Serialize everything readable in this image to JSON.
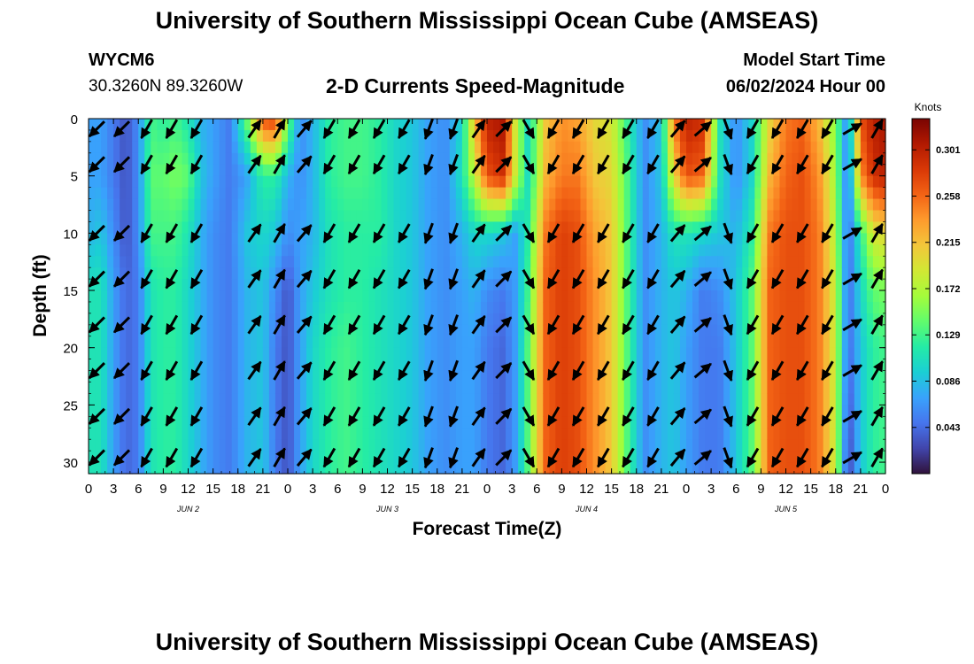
{
  "header": {
    "title": "University of Southern Mississippi Ocean Cube (AMSEAS)",
    "station_id": "WYCM6",
    "station_coords": "30.3260N  89.3260W",
    "subtitle": "2-D Currents Speed-Magnitude",
    "model_start_label": "Model Start Time",
    "model_start_value": "06/02/2024 Hour 00"
  },
  "footer": {
    "title": "University of Southern Mississippi Ocean Cube (AMSEAS)"
  },
  "colors": {
    "colormap": [
      "#30123b",
      "#4145ab",
      "#4675ed",
      "#39a2fc",
      "#1bcfd4",
      "#24eca6",
      "#61fc6c",
      "#a4fc3b",
      "#d1e834",
      "#f3c63a",
      "#fe9b2d",
      "#f36315",
      "#d93806",
      "#b11901",
      "#7a0402"
    ]
  },
  "chart_data": {
    "type": "heatmap",
    "title": "2-D Currents Speed-Magnitude",
    "xlabel": "Forecast Time(Z)",
    "ylabel": "Depth (ft)",
    "xlim": [
      0,
      96
    ],
    "ylim": [
      31,
      0
    ],
    "x_ticks": [
      0,
      3,
      6,
      9,
      12,
      15,
      18,
      21,
      24,
      27,
      30,
      33,
      36,
      39,
      42,
      45,
      48,
      51,
      54,
      57,
      60,
      63,
      66,
      69,
      72,
      75,
      78,
      81,
      84,
      87,
      90,
      93,
      96
    ],
    "x_tick_labels": [
      "0",
      "3",
      "6",
      "9",
      "12",
      "15",
      "18",
      "21",
      "0",
      "3",
      "6",
      "9",
      "12",
      "15",
      "18",
      "21",
      "0",
      "3",
      "6",
      "9",
      "12",
      "15",
      "18",
      "21",
      "0",
      "3",
      "6",
      "9",
      "12",
      "15",
      "18",
      "21",
      "0"
    ],
    "day_labels": [
      {
        "hour": 12,
        "text": "JUN 2"
      },
      {
        "hour": 36,
        "text": "JUN 3"
      },
      {
        "hour": 60,
        "text": "JUN 4"
      },
      {
        "hour": 84,
        "text": "JUN 5"
      }
    ],
    "y_ticks": [
      0,
      5,
      10,
      15,
      20,
      25,
      30
    ],
    "y_tick_labels": [
      "0",
      "5",
      "10",
      "15",
      "20",
      "25",
      "30"
    ],
    "colorbar": {
      "unit": "Knots",
      "min": 0.0,
      "max": 0.33,
      "tick_values": [
        0.043,
        0.086,
        0.129,
        0.172,
        0.215,
        0.258,
        0.301
      ],
      "tick_labels": [
        "0.043",
        "0.086",
        "0.129",
        "0.172",
        "0.215",
        "0.258",
        "0.301"
      ]
    },
    "arrow_times": [
      1,
      4,
      7,
      10,
      13,
      20,
      23,
      26,
      29,
      32,
      35,
      38,
      41,
      44,
      47,
      50,
      53,
      56,
      59,
      62,
      65,
      68,
      71,
      74,
      77,
      80,
      83,
      86,
      89,
      92,
      95
    ],
    "arrow_depths": [
      0,
      4,
      10,
      14,
      18,
      22,
      26,
      30
    ],
    "speed_profile": {
      "hours": [
        0,
        1.5,
        3,
        4.5,
        6,
        7.5,
        9,
        10.5,
        12,
        13.5,
        15,
        17,
        19,
        21,
        22.5,
        24,
        25.5,
        27,
        29,
        31,
        33,
        35,
        37,
        39,
        41,
        43,
        45,
        46.5,
        48,
        50,
        51.5,
        53,
        55,
        57,
        59,
        61,
        63,
        65,
        67,
        69,
        70.5,
        72,
        74,
        76,
        78,
        80,
        82,
        84,
        86,
        88,
        90,
        91.5,
        93,
        94.5,
        96
      ],
      "depths": [
        0,
        5,
        10,
        15,
        20,
        25,
        30
      ],
      "values": [
        [
          0.07,
          0.07,
          0.05,
          0.03,
          0.06,
          0.13,
          0.12,
          0.13,
          0.11,
          0.08,
          0.07,
          0.05,
          0.14,
          0.27,
          0.28,
          0.15,
          0.06,
          0.08,
          0.12,
          0.13,
          0.13,
          0.12,
          0.1,
          0.09,
          0.07,
          0.06,
          0.1,
          0.22,
          0.3,
          0.31,
          0.18,
          0.1,
          0.21,
          0.24,
          0.23,
          0.2,
          0.19,
          0.12,
          0.06,
          0.09,
          0.25,
          0.3,
          0.29,
          0.11,
          0.06,
          0.1,
          0.2,
          0.25,
          0.26,
          0.22,
          0.15,
          0.05,
          0.27,
          0.3,
          0.31
        ],
        [
          0.07,
          0.07,
          0.05,
          0.03,
          0.06,
          0.14,
          0.14,
          0.15,
          0.14,
          0.09,
          0.07,
          0.05,
          0.07,
          0.12,
          0.12,
          0.08,
          0.06,
          0.08,
          0.12,
          0.13,
          0.13,
          0.12,
          0.1,
          0.09,
          0.07,
          0.06,
          0.11,
          0.18,
          0.27,
          0.29,
          0.18,
          0.1,
          0.22,
          0.25,
          0.25,
          0.21,
          0.2,
          0.13,
          0.06,
          0.09,
          0.2,
          0.27,
          0.26,
          0.11,
          0.06,
          0.1,
          0.22,
          0.26,
          0.27,
          0.24,
          0.16,
          0.04,
          0.24,
          0.29,
          0.3
        ],
        [
          0.08,
          0.09,
          0.06,
          0.03,
          0.06,
          0.13,
          0.13,
          0.13,
          0.11,
          0.08,
          0.06,
          0.05,
          0.09,
          0.1,
          0.09,
          0.06,
          0.07,
          0.08,
          0.11,
          0.12,
          0.12,
          0.12,
          0.1,
          0.09,
          0.07,
          0.06,
          0.08,
          0.1,
          0.1,
          0.09,
          0.07,
          0.12,
          0.25,
          0.28,
          0.27,
          0.23,
          0.21,
          0.13,
          0.06,
          0.08,
          0.11,
          0.11,
          0.1,
          0.09,
          0.08,
          0.12,
          0.25,
          0.27,
          0.27,
          0.25,
          0.17,
          0.04,
          0.12,
          0.19,
          0.2
        ],
        [
          0.11,
          0.11,
          0.07,
          0.04,
          0.05,
          0.11,
          0.12,
          0.12,
          0.1,
          0.08,
          0.06,
          0.05,
          0.08,
          0.09,
          0.06,
          0.03,
          0.07,
          0.09,
          0.11,
          0.12,
          0.12,
          0.11,
          0.1,
          0.09,
          0.07,
          0.06,
          0.07,
          0.08,
          0.06,
          0.05,
          0.07,
          0.13,
          0.26,
          0.28,
          0.27,
          0.24,
          0.21,
          0.13,
          0.06,
          0.08,
          0.09,
          0.08,
          0.05,
          0.06,
          0.09,
          0.14,
          0.26,
          0.27,
          0.27,
          0.25,
          0.18,
          0.04,
          0.1,
          0.14,
          0.15
        ],
        [
          0.11,
          0.11,
          0.07,
          0.04,
          0.05,
          0.11,
          0.12,
          0.12,
          0.1,
          0.08,
          0.06,
          0.05,
          0.08,
          0.09,
          0.05,
          0.03,
          0.07,
          0.1,
          0.12,
          0.13,
          0.12,
          0.11,
          0.1,
          0.09,
          0.07,
          0.06,
          0.07,
          0.07,
          0.05,
          0.04,
          0.07,
          0.14,
          0.26,
          0.28,
          0.27,
          0.24,
          0.21,
          0.13,
          0.06,
          0.08,
          0.09,
          0.07,
          0.05,
          0.05,
          0.09,
          0.14,
          0.26,
          0.27,
          0.27,
          0.25,
          0.18,
          0.04,
          0.09,
          0.12,
          0.13
        ],
        [
          0.11,
          0.11,
          0.07,
          0.04,
          0.05,
          0.11,
          0.12,
          0.12,
          0.1,
          0.08,
          0.06,
          0.05,
          0.08,
          0.09,
          0.05,
          0.03,
          0.07,
          0.1,
          0.12,
          0.13,
          0.12,
          0.11,
          0.1,
          0.09,
          0.07,
          0.06,
          0.07,
          0.07,
          0.05,
          0.04,
          0.07,
          0.14,
          0.26,
          0.28,
          0.27,
          0.24,
          0.21,
          0.13,
          0.06,
          0.08,
          0.09,
          0.07,
          0.05,
          0.05,
          0.09,
          0.14,
          0.26,
          0.27,
          0.27,
          0.25,
          0.18,
          0.03,
          0.09,
          0.12,
          0.13
        ],
        [
          0.11,
          0.11,
          0.07,
          0.04,
          0.05,
          0.11,
          0.12,
          0.12,
          0.1,
          0.08,
          0.06,
          0.05,
          0.08,
          0.09,
          0.05,
          0.03,
          0.07,
          0.1,
          0.12,
          0.13,
          0.12,
          0.11,
          0.1,
          0.09,
          0.07,
          0.06,
          0.07,
          0.07,
          0.05,
          0.04,
          0.07,
          0.14,
          0.26,
          0.28,
          0.27,
          0.24,
          0.21,
          0.13,
          0.06,
          0.08,
          0.09,
          0.07,
          0.05,
          0.05,
          0.09,
          0.14,
          0.26,
          0.27,
          0.27,
          0.25,
          0.18,
          0.02,
          0.09,
          0.12,
          0.13
        ]
      ]
    },
    "arrow_dirs": [
      {
        "hour": 1,
        "dir": 225
      },
      {
        "hour": 4,
        "dir": 225
      },
      {
        "hour": 7,
        "dir": 210
      },
      {
        "hour": 10,
        "dir": 210
      },
      {
        "hour": 13,
        "dir": 210
      },
      {
        "hour": 20,
        "dir": 35
      },
      {
        "hour": 23,
        "dir": 30
      },
      {
        "hour": 26,
        "dir": 40
      },
      {
        "hour": 29,
        "dir": 210
      },
      {
        "hour": 32,
        "dir": 210
      },
      {
        "hour": 35,
        "dir": 210
      },
      {
        "hour": 38,
        "dir": 210
      },
      {
        "hour": 41,
        "dir": 200
      },
      {
        "hour": 44,
        "dir": 200
      },
      {
        "hour": 47,
        "dir": 35
      },
      {
        "hour": 50,
        "dir": 45
      },
      {
        "hour": 53,
        "dir": 150
      },
      {
        "hour": 56,
        "dir": 210
      },
      {
        "hour": 59,
        "dir": 210
      },
      {
        "hour": 62,
        "dir": 210
      },
      {
        "hour": 65,
        "dir": 210
      },
      {
        "hour": 68,
        "dir": 210
      },
      {
        "hour": 71,
        "dir": 40
      },
      {
        "hour": 74,
        "dir": 50
      },
      {
        "hour": 77,
        "dir": 160
      },
      {
        "hour": 80,
        "dir": 210
      },
      {
        "hour": 83,
        "dir": 210
      },
      {
        "hour": 86,
        "dir": 210
      },
      {
        "hour": 89,
        "dir": 210
      },
      {
        "hour": 92,
        "dir": 60
      },
      {
        "hour": 95,
        "dir": 30
      }
    ]
  }
}
